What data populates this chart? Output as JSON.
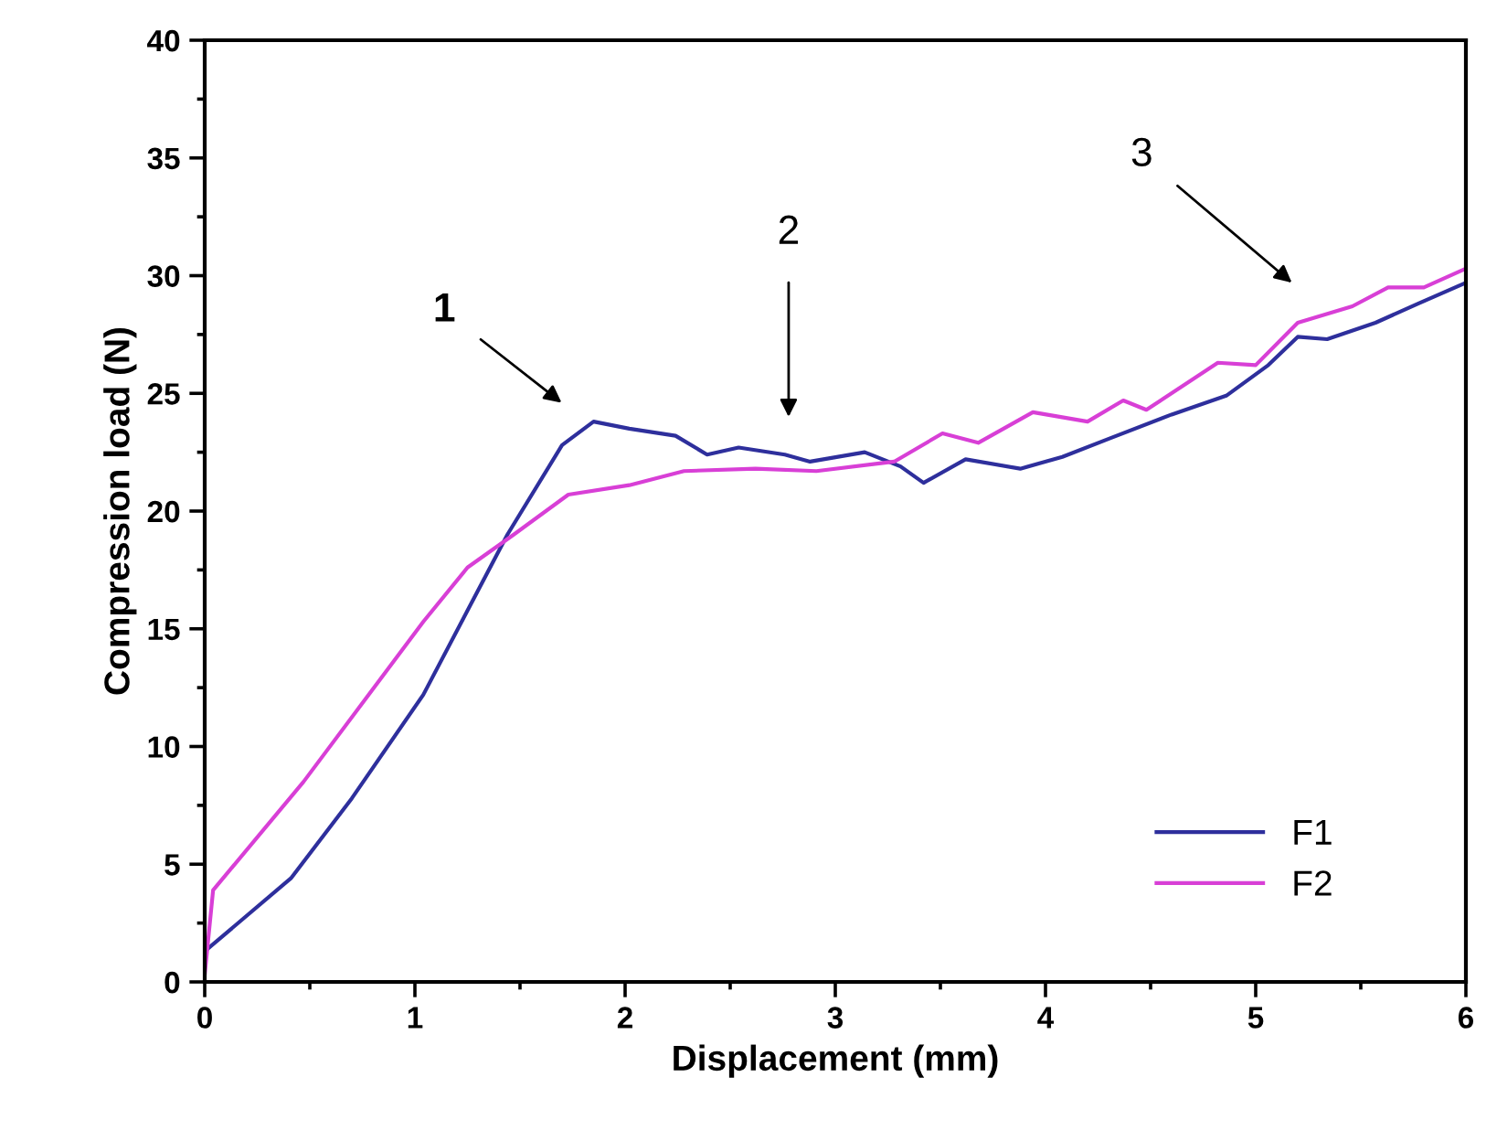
{
  "chart_data": {
    "type": "line",
    "xlabel": "Displacement (mm)",
    "ylabel": "Compression load (N)",
    "xlim": [
      0,
      6
    ],
    "ylim": [
      0,
      40
    ],
    "xticks": [
      0,
      1,
      2,
      3,
      4,
      5,
      6
    ],
    "yticks": [
      0,
      5,
      10,
      15,
      20,
      25,
      30,
      35,
      40
    ],
    "grid": false,
    "legend": "bottom right",
    "marker": "none",
    "line_style": "solid",
    "series": [
      {
        "name": "F1",
        "color": "#2e2f9c",
        "x": [
          0,
          0.41,
          0.7,
          1.04,
          1.44,
          1.7,
          1.85,
          2.02,
          2.24,
          2.39,
          2.54,
          2.76,
          2.88,
          3.14,
          3.31,
          3.42,
          3.62,
          3.88,
          4.08,
          4.31,
          4.6,
          4.86,
          5.06,
          5.2,
          5.34,
          5.57,
          5.77,
          6.0
        ],
        "values": [
          1.3,
          4.4,
          7.8,
          12.2,
          19.0,
          22.8,
          23.8,
          23.5,
          23.2,
          22.4,
          22.7,
          22.4,
          22.1,
          22.5,
          21.9,
          21.2,
          22.2,
          21.8,
          22.3,
          23.1,
          24.1,
          24.9,
          26.2,
          27.4,
          27.3,
          28.0,
          28.8,
          29.7
        ]
      },
      {
        "name": "F2",
        "color": "#d83fd6",
        "x": [
          0,
          0.04,
          0.47,
          1.04,
          1.25,
          1.47,
          1.73,
          2.02,
          2.28,
          2.62,
          2.91,
          3.28,
          3.51,
          3.68,
          3.94,
          4.2,
          4.37,
          4.48,
          4.82,
          5.0,
          5.2,
          5.46,
          5.63,
          5.8,
          6.0
        ],
        "values": [
          0.3,
          3.9,
          8.5,
          15.3,
          17.6,
          19.0,
          20.7,
          21.1,
          21.7,
          21.8,
          21.7,
          22.1,
          23.3,
          22.9,
          24.2,
          23.8,
          24.7,
          24.3,
          26.3,
          26.2,
          28.0,
          28.7,
          29.5,
          29.5,
          30.3
        ]
      }
    ],
    "annotations": [
      "1",
      "2",
      "3"
    ]
  }
}
